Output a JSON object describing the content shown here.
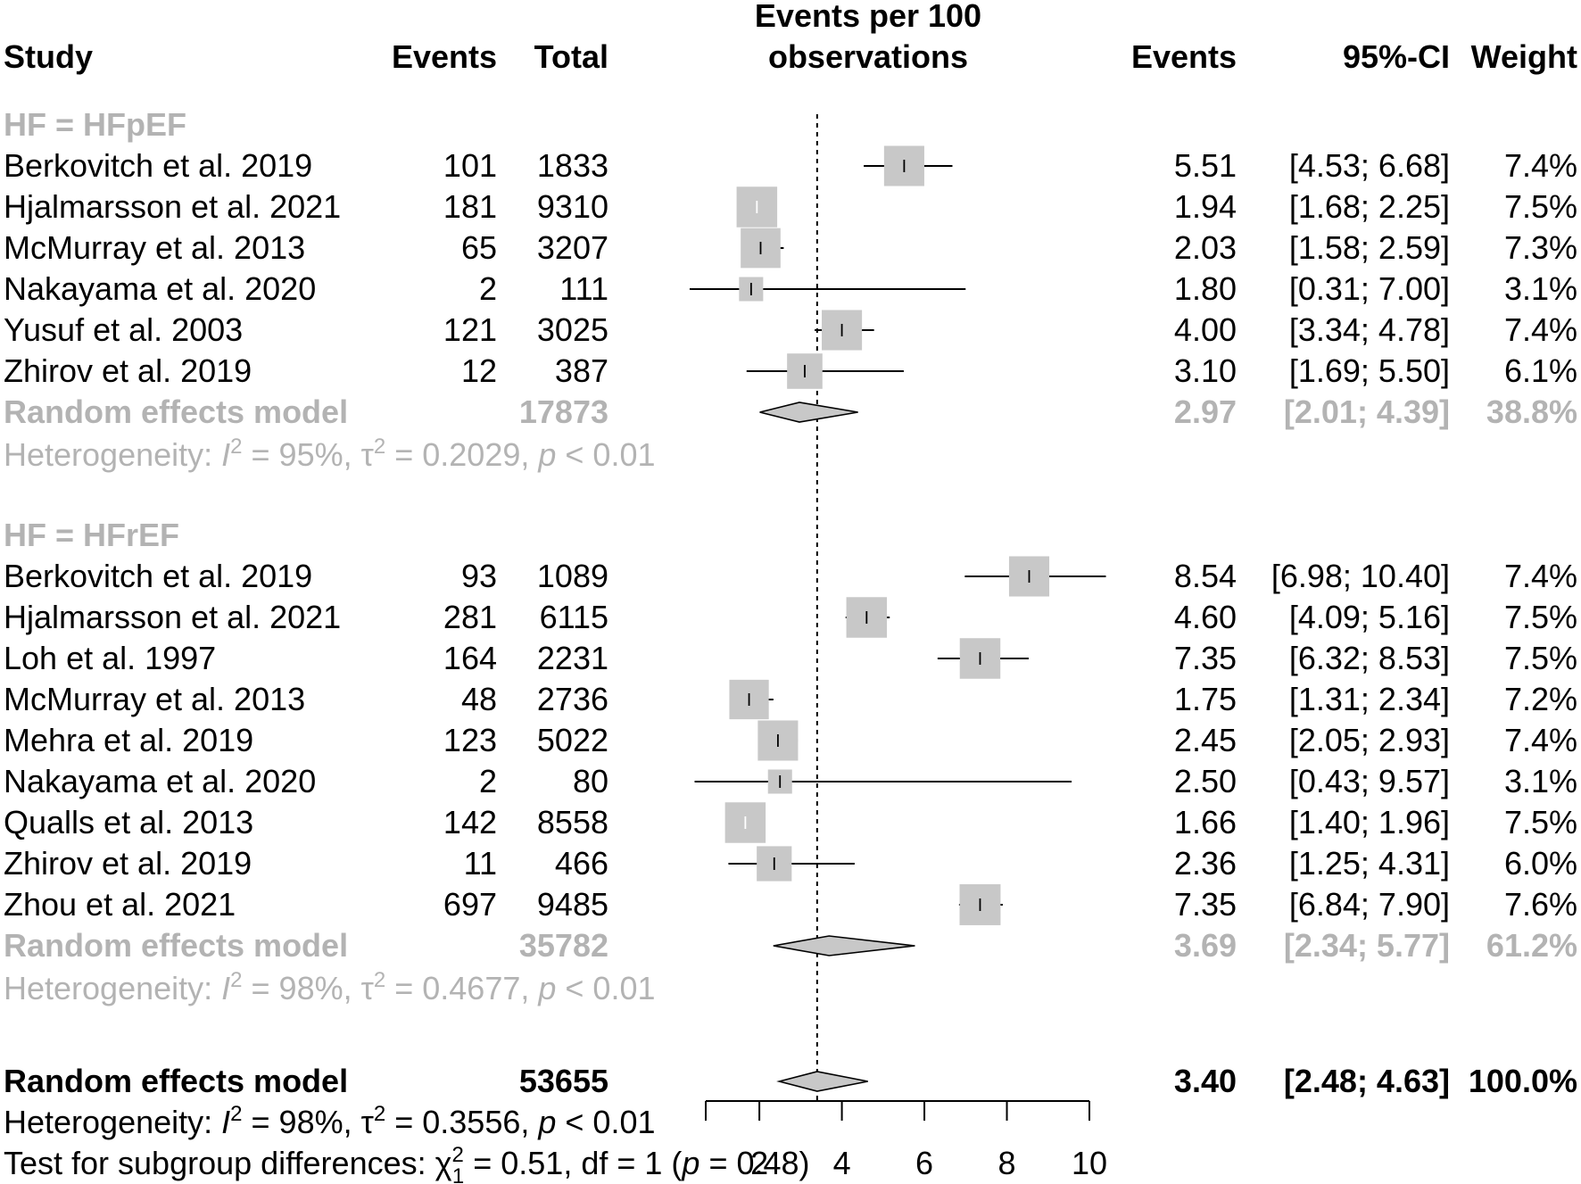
{
  "headers": {
    "study": "Study",
    "events": "Events",
    "total": "Total",
    "axis_line1": "Events per 100",
    "axis_line2": "observations",
    "est": "Events",
    "ci": "95%-CI",
    "weight": "Weight"
  },
  "chart_data": {
    "type": "forest",
    "xlabel": "Events per 100 observations",
    "xlim": [
      0.7,
      10
    ],
    "xticks": [
      2,
      4,
      6,
      8,
      10
    ],
    "xtick_labels": [
      "2",
      "4",
      "6",
      "8",
      "10"
    ],
    "reference_line": 3.4,
    "groups": [
      {
        "label": "HF = HFpEF",
        "studies": [
          {
            "study": "Berkovitch et al. 2019",
            "events": "101",
            "total": "1833",
            "est": 5.51,
            "lower": 4.53,
            "upper": 6.68,
            "est_text": "5.51",
            "ci_text": "[4.53;  6.68]",
            "weight_text": "7.4%",
            "weight": 7.4
          },
          {
            "study": "Hjalmarsson et al. 2021",
            "events": "181",
            "total": "9310",
            "est": 1.94,
            "lower": 1.68,
            "upper": 2.25,
            "est_text": "1.94",
            "ci_text": "[1.68;  2.25]",
            "weight_text": "7.5%",
            "weight": 7.5
          },
          {
            "study": "McMurray et al. 2013",
            "events": "65",
            "total": "3207",
            "est": 2.03,
            "lower": 1.58,
            "upper": 2.59,
            "est_text": "2.03",
            "ci_text": "[1.58;  2.59]",
            "weight_text": "7.3%",
            "weight": 7.3
          },
          {
            "study": "Nakayama et al.  2020",
            "events": "2",
            "total": "111",
            "est": 1.8,
            "lower": 0.31,
            "upper": 7.0,
            "est_text": "1.80",
            "ci_text": "[0.31;  7.00]",
            "weight_text": "3.1%",
            "weight": 3.1
          },
          {
            "study": "Yusuf et al. 2003",
            "events": "121",
            "total": "3025",
            "est": 4.0,
            "lower": 3.34,
            "upper": 4.78,
            "est_text": "4.00",
            "ci_text": "[3.34;  4.78]",
            "weight_text": "7.4%",
            "weight": 7.4
          },
          {
            "study": "Zhirov et al. 2019",
            "events": "12",
            "total": "387",
            "est": 3.1,
            "lower": 1.69,
            "upper": 5.5,
            "est_text": "3.10",
            "ci_text": "[1.69;  5.50]",
            "weight_text": "6.1%",
            "weight": 6.1
          }
        ],
        "summary": {
          "label": "Random effects model",
          "total": "17873",
          "est": 2.97,
          "lower": 2.01,
          "upper": 4.39,
          "est_text": "2.97",
          "ci_text": "[2.01;  4.39]",
          "weight_text": "38.8%"
        },
        "heterogeneity": {
          "prefix": "Heterogeneity: ",
          "I": "I",
          "I2_value": " = 95%, ",
          "tau": "τ",
          "tau2_value": " = 0.2029, ",
          "p": "p",
          "p_value": " < 0.01"
        }
      },
      {
        "label": "HF = HFrEF",
        "studies": [
          {
            "study": "Berkovitch et al. 2019",
            "events": "93",
            "total": "1089",
            "est": 8.54,
            "lower": 6.98,
            "upper": 10.4,
            "est_text": "8.54",
            "ci_text": "[6.98; 10.40]",
            "weight_text": "7.4%",
            "weight": 7.4
          },
          {
            "study": "Hjalmarsson et al. 2021",
            "events": "281",
            "total": "6115",
            "est": 4.6,
            "lower": 4.09,
            "upper": 5.16,
            "est_text": "4.60",
            "ci_text": "[4.09;  5.16]",
            "weight_text": "7.5%",
            "weight": 7.5
          },
          {
            "study": "Loh et al. 1997",
            "events": "164",
            "total": "2231",
            "est": 7.35,
            "lower": 6.32,
            "upper": 8.53,
            "est_text": "7.35",
            "ci_text": "[6.32;  8.53]",
            "weight_text": "7.5%",
            "weight": 7.5
          },
          {
            "study": "McMurray et al. 2013",
            "events": "48",
            "total": "2736",
            "est": 1.75,
            "lower": 1.31,
            "upper": 2.34,
            "est_text": "1.75",
            "ci_text": "[1.31;  2.34]",
            "weight_text": "7.2%",
            "weight": 7.2
          },
          {
            "study": "Mehra et al.  2019",
            "events": "123",
            "total": "5022",
            "est": 2.45,
            "lower": 2.05,
            "upper": 2.93,
            "est_text": "2.45",
            "ci_text": "[2.05;  2.93]",
            "weight_text": "7.4%",
            "weight": 7.4
          },
          {
            "study": "Nakayama et al.  2020",
            "events": "2",
            "total": "80",
            "est": 2.5,
            "lower": 0.43,
            "upper": 9.57,
            "est_text": "2.50",
            "ci_text": "[0.43;  9.57]",
            "weight_text": "3.1%",
            "weight": 3.1
          },
          {
            "study": "Qualls et al.  2013",
            "events": "142",
            "total": "8558",
            "est": 1.66,
            "lower": 1.4,
            "upper": 1.96,
            "est_text": "1.66",
            "ci_text": "[1.40;  1.96]",
            "weight_text": "7.5%",
            "weight": 7.5
          },
          {
            "study": "Zhirov et al. 2019",
            "events": "11",
            "total": "466",
            "est": 2.36,
            "lower": 1.25,
            "upper": 4.31,
            "est_text": "2.36",
            "ci_text": "[1.25;  4.31]",
            "weight_text": "6.0%",
            "weight": 6.0
          },
          {
            "study": "Zhou et al. 2021",
            "events": "697",
            "total": "9485",
            "est": 7.35,
            "lower": 6.84,
            "upper": 7.9,
            "est_text": "7.35",
            "ci_text": "[6.84;  7.90]",
            "weight_text": "7.6%",
            "weight": 7.6
          }
        ],
        "summary": {
          "label": "Random effects model",
          "total": "35782",
          "est": 3.69,
          "lower": 2.34,
          "upper": 5.77,
          "est_text": "3.69",
          "ci_text": "[2.34;  5.77]",
          "weight_text": "61.2%"
        },
        "heterogeneity": {
          "prefix": "Heterogeneity: ",
          "I": "I",
          "I2_value": " = 98%, ",
          "tau": "τ",
          "tau2_value": " = 0.4677, ",
          "p": "p",
          "p_value": " < 0.01"
        }
      }
    ],
    "overall": {
      "label": "Random effects model",
      "total": "53655",
      "est": 3.4,
      "lower": 2.48,
      "upper": 4.63,
      "est_text": "3.40",
      "ci_text": "[2.48;  4.63]",
      "weight_text": "100.0%",
      "heterogeneity": {
        "prefix": "Heterogeneity: ",
        "I": "I",
        "I2_value": " = 98%, ",
        "tau": "τ",
        "tau2_value": " = 0.3556, ",
        "p": "p",
        "p_value": " < 0.01"
      },
      "subgroup_test": {
        "prefix": "Test for subgroup differences: ",
        "chi": "χ",
        "chi_sub": "1",
        "chi_value": " = 0.51, df = 1 (",
        "p": "p",
        "p_value": " = 0.48)"
      }
    },
    "colors": {
      "box": "#c8c8c8",
      "diamond": "#c8c8c8",
      "subgroup_text": "#b3b3b3",
      "line": "#000000"
    }
  }
}
